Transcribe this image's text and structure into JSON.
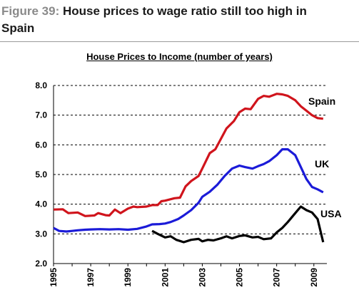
{
  "header": {
    "figure_label": "Figure 39:",
    "title_line1": " House prices to wage ratio still too high in",
    "title_line2": "Spain"
  },
  "chart_data": {
    "type": "line",
    "title": "House Prices to Income (number of years)",
    "xlabel": "",
    "ylabel": "",
    "xlim": [
      1995,
      2009.7
    ],
    "ylim": [
      2.0,
      8.0
    ],
    "yticks": [
      "8.0",
      "7.0",
      "6.0",
      "5.0",
      "4.0",
      "3.0",
      "2.0"
    ],
    "xticks": [
      "1995",
      "1997",
      "1999",
      "2001",
      "2003",
      "2005",
      "2007",
      "2009"
    ],
    "grid": "horizontal dashed",
    "series": [
      {
        "name": "Spain",
        "color": "#d0141c",
        "x": [
          1995.0,
          1995.5,
          1995.8,
          1996.3,
          1996.7,
          1997.2,
          1997.4,
          1997.8,
          1998.0,
          1998.3,
          1998.6,
          1999.0,
          1999.3,
          1999.5,
          2000.0,
          2000.3,
          2000.6,
          2000.8,
          2001.0,
          2001.5,
          2001.8,
          2002.1,
          2002.4,
          2002.8,
          2003.0,
          2003.4,
          2003.7,
          2004.0,
          2004.3,
          2004.7,
          2005.0,
          2005.3,
          2005.6,
          2006.0,
          2006.3,
          2006.6,
          2007.0,
          2007.3,
          2007.6,
          2008.0,
          2008.3,
          2008.6,
          2008.9,
          2009.2,
          2009.5
        ],
        "y": [
          3.82,
          3.83,
          3.7,
          3.72,
          3.6,
          3.62,
          3.7,
          3.63,
          3.62,
          3.82,
          3.7,
          3.85,
          3.92,
          3.9,
          3.92,
          3.97,
          3.97,
          4.1,
          4.12,
          4.2,
          4.22,
          4.6,
          4.78,
          4.95,
          5.2,
          5.72,
          5.85,
          6.2,
          6.55,
          6.8,
          7.1,
          7.22,
          7.2,
          7.55,
          7.65,
          7.62,
          7.72,
          7.7,
          7.65,
          7.5,
          7.3,
          7.15,
          7.0,
          6.9,
          6.88
        ]
      },
      {
        "name": "UK",
        "color": "#1b1bd8",
        "x": [
          1995.0,
          1995.3,
          1995.7,
          1996.0,
          1996.3,
          1996.7,
          1997.0,
          1997.5,
          1998.0,
          1998.5,
          1999.0,
          1999.5,
          2000.0,
          2000.3,
          2000.7,
          2001.0,
          2001.3,
          2001.7,
          2002.0,
          2002.4,
          2002.8,
          2003.0,
          2003.4,
          2003.8,
          2004.2,
          2004.6,
          2005.0,
          2005.3,
          2005.7,
          2006.0,
          2006.3,
          2006.6,
          2007.0,
          2007.3,
          2007.6,
          2008.0,
          2008.3,
          2008.6,
          2008.9,
          2009.2,
          2009.5
        ],
        "y": [
          3.2,
          3.1,
          3.08,
          3.1,
          3.12,
          3.14,
          3.15,
          3.16,
          3.15,
          3.16,
          3.14,
          3.17,
          3.25,
          3.32,
          3.33,
          3.35,
          3.4,
          3.5,
          3.62,
          3.8,
          4.05,
          4.25,
          4.42,
          4.65,
          4.95,
          5.2,
          5.3,
          5.25,
          5.2,
          5.28,
          5.35,
          5.45,
          5.65,
          5.85,
          5.85,
          5.65,
          5.25,
          4.85,
          4.58,
          4.5,
          4.4
        ]
      },
      {
        "name": "USA",
        "color": "#000000",
        "x": [
          2000.3,
          2000.6,
          2001.0,
          2001.3,
          2001.6,
          2002.0,
          2002.4,
          2002.8,
          2003.0,
          2003.3,
          2003.6,
          2004.0,
          2004.3,
          2004.6,
          2005.0,
          2005.3,
          2005.7,
          2006.0,
          2006.3,
          2006.7,
          2007.0,
          2007.3,
          2007.6,
          2008.0,
          2008.3,
          2008.6,
          2008.9,
          2009.2,
          2009.5
        ],
        "y": [
          3.1,
          3.0,
          2.88,
          2.92,
          2.8,
          2.72,
          2.8,
          2.83,
          2.75,
          2.8,
          2.78,
          2.85,
          2.92,
          2.85,
          2.93,
          2.95,
          2.88,
          2.9,
          2.82,
          2.85,
          3.05,
          3.2,
          3.4,
          3.7,
          3.92,
          3.8,
          3.72,
          3.5,
          2.72
        ]
      }
    ]
  }
}
